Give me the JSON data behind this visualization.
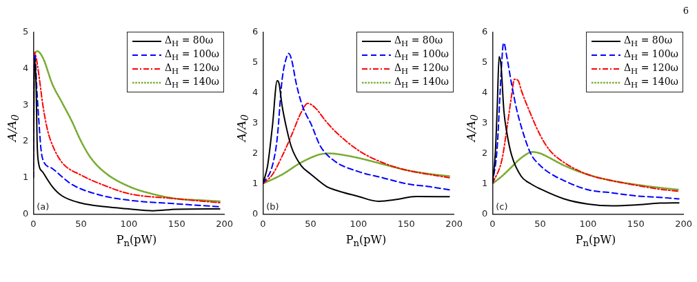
{
  "chart_data": [
    {
      "type": "line",
      "xlabel": "P$_{n}$(pW)",
      "ylabel": "A/A$_{0}$",
      "xlim": [
        0,
        200
      ],
      "xticks": [
        0,
        50,
        100,
        150,
        200
      ],
      "ylim": [
        0,
        5
      ],
      "yticks": [
        0,
        1,
        2,
        3,
        4,
        5
      ],
      "grid": false,
      "legend": "top right",
      "marker": "none",
      "annotations": [
        "(a)"
      ],
      "series": [
        {
          "name": "Δ$_{H}$ = 80ω",
          "color": "#000000",
          "line_style": "solid",
          "x": [
            0,
            0.5,
            1,
            2,
            3,
            4,
            5,
            10,
            20,
            30,
            50,
            75,
            100,
            125,
            150,
            195
          ],
          "values": [
            1,
            2.5,
            4.3,
            4.1,
            3.5,
            2,
            1.5,
            1.15,
            0.75,
            0.5,
            0.3,
            0.2,
            0.14,
            0.09,
            0.13,
            0.14
          ]
        },
        {
          "name": "Δ$_{H}$ = 100ω",
          "color": "#0000ff",
          "line_style": "dashed",
          "x": [
            0,
            1,
            2,
            4,
            6,
            8,
            10,
            20,
            40,
            70,
            100,
            150,
            195
          ],
          "values": [
            1,
            4.4,
            4.3,
            3.3,
            2.5,
            1.8,
            1.5,
            1.25,
            0.82,
            0.52,
            0.38,
            0.28,
            0.2
          ]
        },
        {
          "name": "Δ$_{H}$ = 120ω",
          "color": "#ff0000",
          "line_style": "dashdot",
          "x": [
            0,
            1,
            3,
            6,
            10,
            15,
            20,
            30,
            50,
            75,
            100,
            150,
            195
          ],
          "values": [
            1,
            4.45,
            4.3,
            3.8,
            3,
            2.3,
            1.9,
            1.42,
            1.07,
            0.78,
            0.56,
            0.42,
            0.31
          ]
        },
        {
          "name": "Δ$_{H}$ = 140ω",
          "color": "#77ac30",
          "line_style": "dotted",
          "x": [
            0,
            1,
            4,
            10,
            20,
            30,
            40,
            50,
            60,
            75,
            100,
            125,
            150,
            175,
            195
          ],
          "values": [
            1,
            4.3,
            4.48,
            4.3,
            3.57,
            3.07,
            2.57,
            2,
            1.55,
            1.14,
            0.76,
            0.55,
            0.42,
            0.38,
            0.35
          ]
        }
      ]
    },
    {
      "type": "line",
      "xlabel": "P$_{n}$(pW)",
      "ylabel": "A/A$_{0}$",
      "xlim": [
        0,
        200
      ],
      "xticks": [
        0,
        50,
        100,
        150,
        200
      ],
      "ylim": [
        0,
        6
      ],
      "yticks": [
        0,
        1,
        2,
        3,
        4,
        5,
        6
      ],
      "grid": false,
      "legend": "top right",
      "marker": "none",
      "annotations": [
        "(b)"
      ],
      "series": [
        {
          "name": "Δ$_{H}$ = 80ω",
          "color": "#000000",
          "line_style": "solid",
          "x": [
            0,
            5,
            10,
            15,
            17,
            20,
            25,
            30,
            40,
            50,
            67,
            75,
            100,
            121,
            140,
            160,
            195
          ],
          "values": [
            1,
            1.6,
            2.9,
            4.4,
            4.3,
            3.6,
            2.8,
            2.2,
            1.6,
            1.32,
            0.9,
            0.8,
            0.58,
            0.42,
            0.48,
            0.58,
            0.57
          ]
        },
        {
          "name": "Δ$_{H}$ = 100ω",
          "color": "#0000ff",
          "line_style": "dashed",
          "x": [
            0,
            10,
            15,
            20,
            25,
            27,
            30,
            35,
            40,
            45,
            50,
            60,
            75,
            100,
            125,
            150,
            175,
            195
          ],
          "values": [
            1,
            1.6,
            2.5,
            4.4,
            5.2,
            5.3,
            5.1,
            4.3,
            3.7,
            3.3,
            3,
            2.25,
            1.75,
            1.4,
            1.2,
            1,
            0.9,
            0.8
          ]
        },
        {
          "name": "Δ$_{H}$ = 120ω",
          "color": "#ff0000",
          "line_style": "dashdot",
          "x": [
            0,
            10,
            20,
            30,
            40,
            47,
            55,
            65,
            75,
            100,
            125,
            150,
            175,
            195
          ],
          "values": [
            1,
            1.3,
            1.9,
            2.6,
            3.35,
            3.65,
            3.5,
            3.1,
            2.75,
            2.1,
            1.7,
            1.45,
            1.3,
            1.2
          ]
        },
        {
          "name": "Δ$_{H}$ = 140ω",
          "color": "#77ac30",
          "line_style": "dotted",
          "x": [
            0,
            20,
            40,
            60,
            70,
            80,
            100,
            125,
            150,
            175,
            195
          ],
          "values": [
            1,
            1.3,
            1.7,
            1.97,
            2,
            1.97,
            1.85,
            1.65,
            1.45,
            1.32,
            1.25
          ]
        }
      ]
    },
    {
      "type": "line",
      "xlabel": "P$_{n}$(pW)",
      "ylabel": "A/A$_{0}$",
      "xlim": [
        0,
        200
      ],
      "xticks": [
        0,
        50,
        100,
        150,
        200
      ],
      "ylim": [
        0,
        6
      ],
      "yticks": [
        0,
        1,
        2,
        3,
        4,
        5,
        6
      ],
      "grid": false,
      "legend": "top right",
      "marker": "none",
      "annotations": [
        "(c)",
        "6"
      ],
      "series": [
        {
          "name": "Δ$_{H}$ = 80ω",
          "color": "#000000",
          "line_style": "solid",
          "x": [
            0,
            3,
            5,
            7,
            9,
            12,
            15,
            20,
            30,
            40,
            50,
            75,
            100,
            125,
            150,
            175,
            195
          ],
          "values": [
            1,
            2,
            3.5,
            5.2,
            4.9,
            3.4,
            2.7,
            1.95,
            1.25,
            1,
            0.83,
            0.5,
            0.33,
            0.27,
            0.3,
            0.36,
            0.37
          ]
        },
        {
          "name": "Δ$_{H}$ = 100ω",
          "color": "#0000ff",
          "line_style": "dashed",
          "x": [
            0,
            5,
            8,
            11,
            12,
            15,
            20,
            25,
            30,
            40,
            50,
            60,
            75,
            100,
            125,
            150,
            175,
            195
          ],
          "values": [
            1,
            2.2,
            4,
            5.55,
            5.65,
            5.2,
            4.3,
            3.5,
            2.9,
            2,
            1.6,
            1.35,
            1.1,
            0.8,
            0.7,
            0.6,
            0.55,
            0.5
          ]
        },
        {
          "name": "Δ$_{H}$ = 120ω",
          "color": "#ff0000",
          "line_style": "dashdot",
          "x": [
            0,
            10,
            15,
            20,
            23,
            27,
            30,
            40,
            50,
            60,
            75,
            100,
            125,
            150,
            175,
            195
          ],
          "values": [
            1,
            1.8,
            2.8,
            3.9,
            4.45,
            4.4,
            4.1,
            3.3,
            2.6,
            2.1,
            1.7,
            1.3,
            1.1,
            0.95,
            0.82,
            0.75
          ]
        },
        {
          "name": "Δ$_{H}$ = 140ω",
          "color": "#77ac30",
          "line_style": "dotted",
          "x": [
            0,
            10,
            20,
            30,
            42,
            50,
            60,
            75,
            100,
            125,
            150,
            175,
            195
          ],
          "values": [
            1,
            1.25,
            1.55,
            1.85,
            2.05,
            2,
            1.85,
            1.6,
            1.3,
            1.1,
            0.97,
            0.87,
            0.8
          ]
        }
      ]
    }
  ]
}
